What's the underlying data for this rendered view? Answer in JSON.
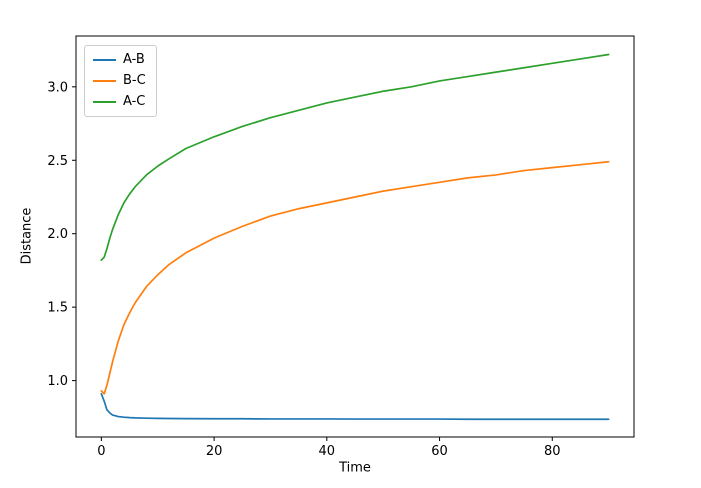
{
  "figure": {
    "background": "#ffffff"
  },
  "chart_data": {
    "type": "line",
    "title": "",
    "xlabel": "Time",
    "ylabel": "Distance",
    "xlim": [
      -4.5,
      94.5
    ],
    "ylim": [
      0.616,
      3.346
    ],
    "xticks": [
      0,
      20,
      40,
      60,
      80
    ],
    "xtick_labels": [
      "0",
      "20",
      "40",
      "60",
      "80"
    ],
    "yticks": [
      1.0,
      1.5,
      2.0,
      2.5,
      3.0
    ],
    "ytick_labels": [
      "1.0",
      "1.5",
      "2.0",
      "2.5",
      "3.0"
    ],
    "grid": false,
    "legend_position": "upper-left",
    "axis_color": "#000000",
    "x": [
      0,
      0.5,
      1,
      1.5,
      2,
      3,
      4,
      5,
      6,
      8,
      10,
      12,
      15,
      20,
      25,
      30,
      35,
      40,
      45,
      50,
      55,
      60,
      65,
      70,
      75,
      80,
      85,
      90
    ],
    "series": [
      {
        "name": "A-B",
        "color": "#1f77b4",
        "values": [
          0.91,
          0.86,
          0.8,
          0.78,
          0.765,
          0.755,
          0.751,
          0.748,
          0.746,
          0.744,
          0.743,
          0.742,
          0.741,
          0.74,
          0.74,
          0.739,
          0.739,
          0.739,
          0.738,
          0.738,
          0.738,
          0.738,
          0.737,
          0.737,
          0.737,
          0.737,
          0.737,
          0.737
        ]
      },
      {
        "name": "B-C",
        "color": "#ff7f0e",
        "values": [
          0.93,
          0.91,
          0.97,
          1.05,
          1.13,
          1.27,
          1.38,
          1.46,
          1.53,
          1.64,
          1.72,
          1.79,
          1.87,
          1.97,
          2.05,
          2.12,
          2.17,
          2.21,
          2.25,
          2.29,
          2.32,
          2.35,
          2.38,
          2.4,
          2.43,
          2.45,
          2.47,
          2.49
        ]
      },
      {
        "name": "A-C",
        "color": "#2ca02c",
        "values": [
          1.82,
          1.84,
          1.9,
          1.97,
          2.03,
          2.13,
          2.21,
          2.27,
          2.32,
          2.4,
          2.46,
          2.51,
          2.58,
          2.66,
          2.73,
          2.79,
          2.84,
          2.89,
          2.93,
          2.97,
          3.0,
          3.04,
          3.07,
          3.1,
          3.13,
          3.16,
          3.19,
          3.22
        ]
      }
    ]
  }
}
